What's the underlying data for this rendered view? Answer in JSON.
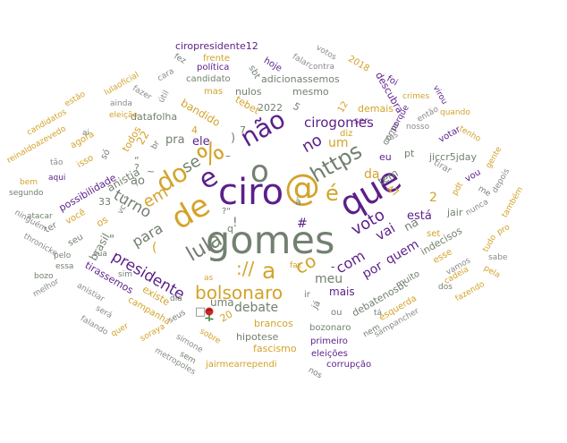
{
  "colors": {
    "slate": "#728070",
    "purple": "#5b1f8a",
    "gold": "#d3a32a",
    "gray": "#8a8a8a"
  },
  "words": [
    {
      "text": "gomes",
      "color": "slate",
      "size": 43
    },
    {
      "text": "ciro",
      "color": "purple",
      "size": 40
    },
    {
      "text": "@",
      "color": "gold",
      "size": 40
    },
    {
      "text": "que",
      "color": "purple",
      "size": 38
    },
    {
      "text": "de",
      "color": "gold",
      "size": 34
    },
    {
      "text": "do",
      "color": "gold",
      "size": 28
    },
    {
      "text": "e",
      "color": "purple",
      "size": 30
    },
    {
      "text": "o",
      "color": "slate",
      "size": 34
    },
    {
      "text": "não",
      "color": "purple",
      "size": 28
    },
    {
      "text": "%",
      "color": "gold",
      "size": 30
    },
    {
      "text": "https",
      "color": "slate",
      "size": 24
    },
    {
      "text": "é",
      "color": "gold",
      "size": 24
    },
    {
      "text": "lula",
      "color": "slate",
      "size": 23
    },
    {
      "text": "bolsonaro",
      "color": "gold",
      "size": 20
    },
    {
      "text": "a",
      "color": "gold",
      "size": 25
    },
    {
      "text": "://",
      "color": "gold",
      "size": 20
    },
    {
      "text": "co",
      "color": "gold",
      "size": 20
    },
    {
      "text": "voto",
      "color": "purple",
      "size": 18
    },
    {
      "text": "presidente",
      "color": "purple",
      "size": 17
    },
    {
      "text": "em",
      "color": "gold",
      "size": 18
    },
    {
      "text": "se",
      "color": "slate",
      "size": 18
    },
    {
      "text": "turno",
      "color": "slate",
      "size": 17
    },
    {
      "text": "para",
      "color": "slate",
      "size": 16
    },
    {
      "text": "com",
      "color": "purple",
      "size": 16
    },
    {
      "text": "vai",
      "color": "purple",
      "size": 15
    },
    {
      "text": "debate",
      "color": "slate",
      "size": 14
    },
    {
      "text": "cirogomes",
      "color": "purple",
      "size": 15
    },
    {
      "text": "no",
      "color": "purple",
      "size": 18
    },
    {
      "text": "um",
      "color": "gold",
      "size": 14
    },
    {
      "text": "meu",
      "color": "slate",
      "size": 14
    },
    {
      "text": "por",
      "color": "purple",
      "size": 14
    },
    {
      "text": "quem",
      "color": "purple",
      "size": 14
    },
    {
      "text": "pra",
      "color": "slate",
      "size": 13
    },
    {
      "text": "ele",
      "color": "purple",
      "size": 13
    },
    {
      "text": "na",
      "color": "slate",
      "size": 13
    },
    {
      "text": "está",
      "color": "purple",
      "size": 13
    },
    {
      "text": "da",
      "color": "gold",
      "size": 14
    },
    {
      "text": "uma",
      "color": "slate",
      "size": 12
    },
    {
      "text": "mais",
      "color": "purple",
      "size": 12
    },
    {
      "text": "#",
      "color": "purple",
      "size": 14
    },
    {
      "text": "anistia",
      "color": "slate",
      "size": 12
    },
    {
      "text": "brasil",
      "color": "slate",
      "size": 12
    },
    {
      "text": "ciropresidente12",
      "color": "purple",
      "size": 11
    },
    {
      "text": "frente",
      "color": "gold",
      "size": 10
    },
    {
      "text": "política",
      "color": "purple",
      "size": 10
    },
    {
      "text": "candidato",
      "color": "slate",
      "size": 10
    },
    {
      "text": "adicionassemos",
      "color": "slate",
      "size": 11
    },
    {
      "text": "nulos",
      "color": "slate",
      "size": 11
    },
    {
      "text": "mesmo",
      "color": "slate",
      "size": 11
    },
    {
      "text": "2022",
      "color": "slate",
      "size": 11
    },
    {
      "text": "tebet",
      "color": "gold",
      "size": 11
    },
    {
      "text": "bandido",
      "color": "gold",
      "size": 12
    },
    {
      "text": "datafolha",
      "color": "slate",
      "size": 11
    },
    {
      "text": "mas",
      "color": "gold",
      "size": 10
    },
    {
      "text": "hoje",
      "color": "purple",
      "size": 10
    },
    {
      "text": "votos",
      "color": "gray",
      "size": 9
    },
    {
      "text": "2018",
      "color": "gold",
      "size": 10
    },
    {
      "text": "contra",
      "color": "gray",
      "size": 9
    },
    {
      "text": "falar",
      "color": "gray",
      "size": 9
    },
    {
      "text": "sbt",
      "color": "slate",
      "size": 10
    },
    {
      "text": "fez",
      "color": "slate",
      "size": 9
    },
    {
      "text": "cara",
      "color": "gray",
      "size": 9
    },
    {
      "text": "fazer",
      "color": "gray",
      "size": 9
    },
    {
      "text": "útil",
      "color": "gray",
      "size": 9
    },
    {
      "text": "lulaoficial",
      "color": "gold",
      "size": 9
    },
    {
      "text": "estão",
      "color": "gold",
      "size": 9
    },
    {
      "text": "ainda",
      "color": "gray",
      "size": 9
    },
    {
      "text": "eleição",
      "color": "gold",
      "size": 9
    },
    {
      "text": "candidatos",
      "color": "gold",
      "size": 9
    },
    {
      "text": "reinaldoazevedo",
      "color": "gold",
      "size": 9
    },
    {
      "text": "agora",
      "color": "gold",
      "size": 10
    },
    {
      "text": "isso",
      "color": "gold",
      "size": 10
    },
    {
      "text": "tão",
      "color": "gray",
      "size": 9
    },
    {
      "text": "aqui",
      "color": "purple",
      "size": 9
    },
    {
      "text": "bem",
      "color": "gold",
      "size": 9
    },
    {
      "text": "segundo",
      "color": "slate",
      "size": 9
    },
    {
      "text": "possibilidade",
      "color": "purple",
      "size": 11
    },
    {
      "text": "todos",
      "color": "gold",
      "size": 11
    },
    {
      "text": "22",
      "color": "gold",
      "size": 12
    },
    {
      "text": "só",
      "color": "slate",
      "size": 10
    },
    {
      "text": "ninguém",
      "color": "gray",
      "size": 9
    },
    {
      "text": "atacar",
      "color": "slate",
      "size": 9
    },
    {
      "text": "você",
      "color": "gold",
      "size": 10
    },
    {
      "text": "ter",
      "color": "slate",
      "size": 10
    },
    {
      "text": "33",
      "color": "slate",
      "size": 11
    },
    {
      "text": "os",
      "color": "gold",
      "size": 11
    },
    {
      "text": "seu",
      "color": "slate",
      "size": 10
    },
    {
      "text": "thronicke",
      "color": "gray",
      "size": 9
    },
    {
      "text": "pelo",
      "color": "slate",
      "size": 9
    },
    {
      "text": "essa",
      "color": "slate",
      "size": 9
    },
    {
      "text": "bozo",
      "color": "slate",
      "size": 9
    },
    {
      "text": "melhor",
      "color": "gray",
      "size": 9
    },
    {
      "text": "sua",
      "color": "slate",
      "size": 9
    },
    {
      "text": "tirassemos",
      "color": "purple",
      "size": 11
    },
    {
      "text": "sim",
      "color": "slate",
      "size": 9
    },
    {
      "text": "anistiar",
      "color": "gray",
      "size": 9
    },
    {
      "text": "existe",
      "color": "gold",
      "size": 11
    },
    {
      "text": "campanha",
      "color": "gold",
      "size": 10
    },
    {
      "text": "será",
      "color": "gray",
      "size": 9
    },
    {
      "text": "quer",
      "color": "gold",
      "size": 9
    },
    {
      "text": "soraya",
      "color": "gold",
      "size": 9
    },
    {
      "text": "falando",
      "color": "gray",
      "size": 9
    },
    {
      "text": "seus",
      "color": "slate",
      "size": 9
    },
    {
      "text": "simone",
      "color": "gray",
      "size": 9
    },
    {
      "text": "sem",
      "color": "slate",
      "size": 9
    },
    {
      "text": "metropoles",
      "color": "gray",
      "size": 9
    },
    {
      "text": "dia",
      "color": "slate",
      "size": 9
    },
    {
      "text": "as",
      "color": "gold",
      "size": 9
    },
    {
      "text": "sobre",
      "color": "gold",
      "size": 9
    },
    {
      "text": "20",
      "color": "gold",
      "size": 11
    },
    {
      "text": "jairmearrependi",
      "color": "gold",
      "size": 10
    },
    {
      "text": "hipotese",
      "color": "slate",
      "size": 11
    },
    {
      "text": "brancos",
      "color": "gold",
      "size": 11
    },
    {
      "text": "fascismo",
      "color": "gold",
      "size": 11
    },
    {
      "text": "bozonaro",
      "color": "slate",
      "size": 10
    },
    {
      "text": "primeiro",
      "color": "purple",
      "size": 10
    },
    {
      "text": "eleições",
      "color": "purple",
      "size": 10
    },
    {
      "text": "corrupção",
      "color": "purple",
      "size": 10
    },
    {
      "text": "nos",
      "color": "slate",
      "size": 9
    },
    {
      "text": "já",
      "color": "slate",
      "size": 10
    },
    {
      "text": "ou",
      "color": "slate",
      "size": 10
    },
    {
      "text": "ir",
      "color": "slate",
      "size": 10
    },
    {
      "text": "faz",
      "color": "gold",
      "size": 9
    },
    {
      "text": "debatenosbt",
      "color": "slate",
      "size": 11
    },
    {
      "text": "muito",
      "color": "slate",
      "size": 10
    },
    {
      "text": "tá",
      "color": "slate",
      "size": 9
    },
    {
      "text": "nem",
      "color": "slate",
      "size": 9
    },
    {
      "text": "esquerda",
      "color": "gold",
      "size": 10
    },
    {
      "text": "sampancher",
      "color": "gray",
      "size": 9
    },
    {
      "text": "indecisos",
      "color": "slate",
      "size": 11
    },
    {
      "text": "esse",
      "color": "gold",
      "size": 10
    },
    {
      "text": "vamos",
      "color": "gray",
      "size": 9
    },
    {
      "text": "dos",
      "color": "slate",
      "size": 9
    },
    {
      "text": "cadeia",
      "color": "gold",
      "size": 9
    },
    {
      "text": "fazendo",
      "color": "gold",
      "size": 9
    },
    {
      "text": "pela",
      "color": "gold",
      "size": 9
    },
    {
      "text": "sabe",
      "color": "gray",
      "size": 9
    },
    {
      "text": "pro",
      "color": "gold",
      "size": 9
    },
    {
      "text": "tudo",
      "color": "gold",
      "size": 9
    },
    {
      "text": "jair",
      "color": "slate",
      "size": 11
    },
    {
      "text": "set",
      "color": "gold",
      "size": 10
    },
    {
      "text": "também",
      "color": "gold",
      "size": 9
    },
    {
      "text": "nunca",
      "color": "gray",
      "size": 9
    },
    {
      "text": "me",
      "color": "slate",
      "size": 9
    },
    {
      "text": "depois",
      "color": "gray",
      "size": 9
    },
    {
      "text": "pdt",
      "color": "gold",
      "size": 9
    },
    {
      "text": "vou",
      "color": "purple",
      "size": 10
    },
    {
      "text": "gente",
      "color": "gold",
      "size": 9
    },
    {
      "text": "tenho",
      "color": "gold",
      "size": 9
    },
    {
      "text": "votar",
      "color": "purple",
      "size": 10
    },
    {
      "text": "tirar",
      "color": "gray",
      "size": 10
    },
    {
      "text": "jiccr5jday",
      "color": "slate",
      "size": 11
    },
    {
      "text": "pt",
      "color": "slate",
      "size": 11
    },
    {
      "text": "eu",
      "color": "purple",
      "size": 11
    },
    {
      "text": "tem",
      "color": "slate",
      "size": 12
    },
    {
      "text": "47",
      "color": "gold",
      "size": 11
    },
    {
      "text": "como",
      "color": "slate",
      "size": 10
    },
    {
      "text": "das",
      "color": "gray",
      "size": 9
    },
    {
      "text": "nosso",
      "color": "gray",
      "size": 9
    },
    {
      "text": "diz",
      "color": "gold",
      "size": 10
    },
    {
      "text": "porque",
      "color": "purple",
      "size": 9
    },
    {
      "text": "crimes",
      "color": "gold",
      "size": 9
    },
    {
      "text": "então",
      "color": "gray",
      "size": 9
    },
    {
      "text": "virou",
      "color": "purple",
      "size": 9
    },
    {
      "text": "quando",
      "color": "gold",
      "size": 9
    },
    {
      "text": "foi",
      "color": "purple",
      "size": 10
    },
    {
      "text": "descubra",
      "color": "purple",
      "size": 11
    },
    {
      "text": "demais",
      "color": "gold",
      "size": 11
    },
    {
      "text": "ser",
      "color": "purple",
      "size": 10
    },
    {
      "text": "12",
      "color": "gold",
      "size": 10
    },
    {
      "text": "5",
      "color": "slate",
      "size": 11
    },
    {
      "text": "7",
      "color": "slate",
      "size": 11
    },
    {
      "text": "4",
      "color": "gold",
      "size": 11
    },
    {
      "text": "2",
      "color": "gold",
      "size": 14
    },
    {
      "text": "(",
      "color": "gold",
      "size": 14
    },
    {
      "text": ")",
      "color": "slate",
      "size": 13
    },
    {
      "text": "?",
      "color": "slate",
      "size": 11
    },
    {
      "text": "?\"",
      "color": "slate",
      "size": 10
    },
    {
      "text": "\"",
      "color": "slate",
      "size": 13
    },
    {
      "text": "ao",
      "color": "slate",
      "size": 13
    },
    {
      "text": "!",
      "color": "slate",
      "size": 14
    },
    {
      "text": "-",
      "color": "purple",
      "size": 12
    },
    {
      "text": "–",
      "color": "slate",
      "size": 12
    },
    {
      "text": "à",
      "color": "slate",
      "size": 11
    },
    {
      "text": "q",
      "color": "slate",
      "size": 11
    },
    {
      "text": "ai",
      "color": "slate",
      "size": 9
    },
    {
      "text": "vc",
      "color": "slate",
      "size": 9
    },
    {
      "text": "br",
      "color": "slate",
      "size": 9
    },
    {
      "text": "□",
      "color": "slate",
      "size": 13
    },
    {
      "text": "“",
      "color": "slate",
      "size": 11
    },
    {
      "text": "”",
      "color": "slate",
      "size": 11
    },
    {
      "text": "'",
      "color": "slate",
      "size": 9
    },
    {
      "text": "~",
      "color": "slate",
      "size": 11
    }
  ]
}
